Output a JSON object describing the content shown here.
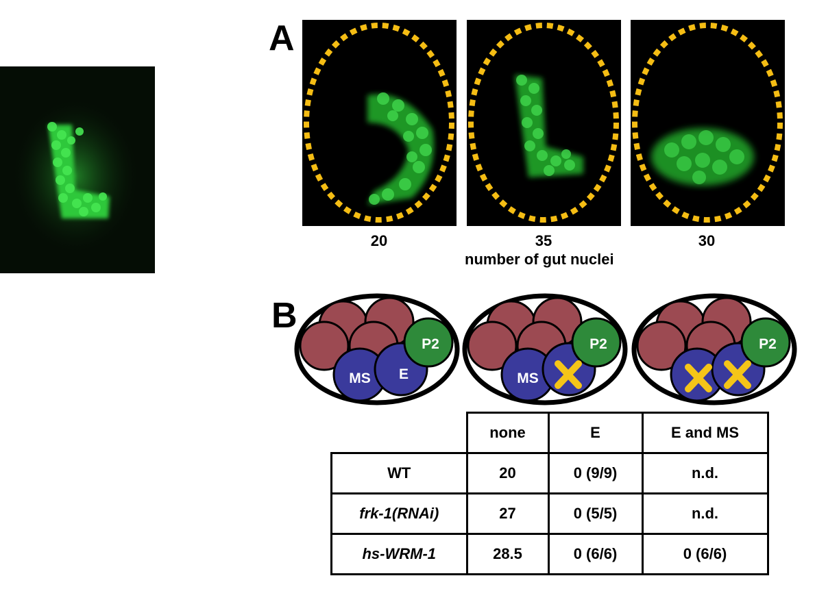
{
  "panel_a": {
    "letter": "A",
    "counts": [
      "20",
      "35",
      "30"
    ],
    "caption": "number of gut nuclei"
  },
  "panel_b": {
    "letter": "B",
    "cell_labels": {
      "ms": "MS",
      "e": "E",
      "p2": "P2"
    },
    "table": {
      "headers": [
        "none",
        "E",
        "E and MS"
      ],
      "rows": [
        {
          "label": "WT",
          "italic_part": "",
          "values": [
            "20",
            "0 (9/9)",
            "n.d."
          ]
        },
        {
          "label": "frk-1(RNAi)",
          "italic_part": "frk-1(RNAi)",
          "values": [
            "27",
            "0 (5/5)",
            "n.d."
          ]
        },
        {
          "label": "hs-WRM-1",
          "italic_part": "hs-WRM-1",
          "values": [
            "28.5",
            "0 (6/6)",
            "0 (6/6)"
          ]
        }
      ]
    }
  },
  "colors": {
    "embryo_bg": "#000000",
    "gfp_green": "#2fd13a",
    "dotted_outline": "#f5bd14",
    "maroon_cell": "#9c4a52",
    "blue_cell": "#3a3a9c",
    "green_cell": "#2e8a3a",
    "ablation_x": "#f5c518"
  }
}
